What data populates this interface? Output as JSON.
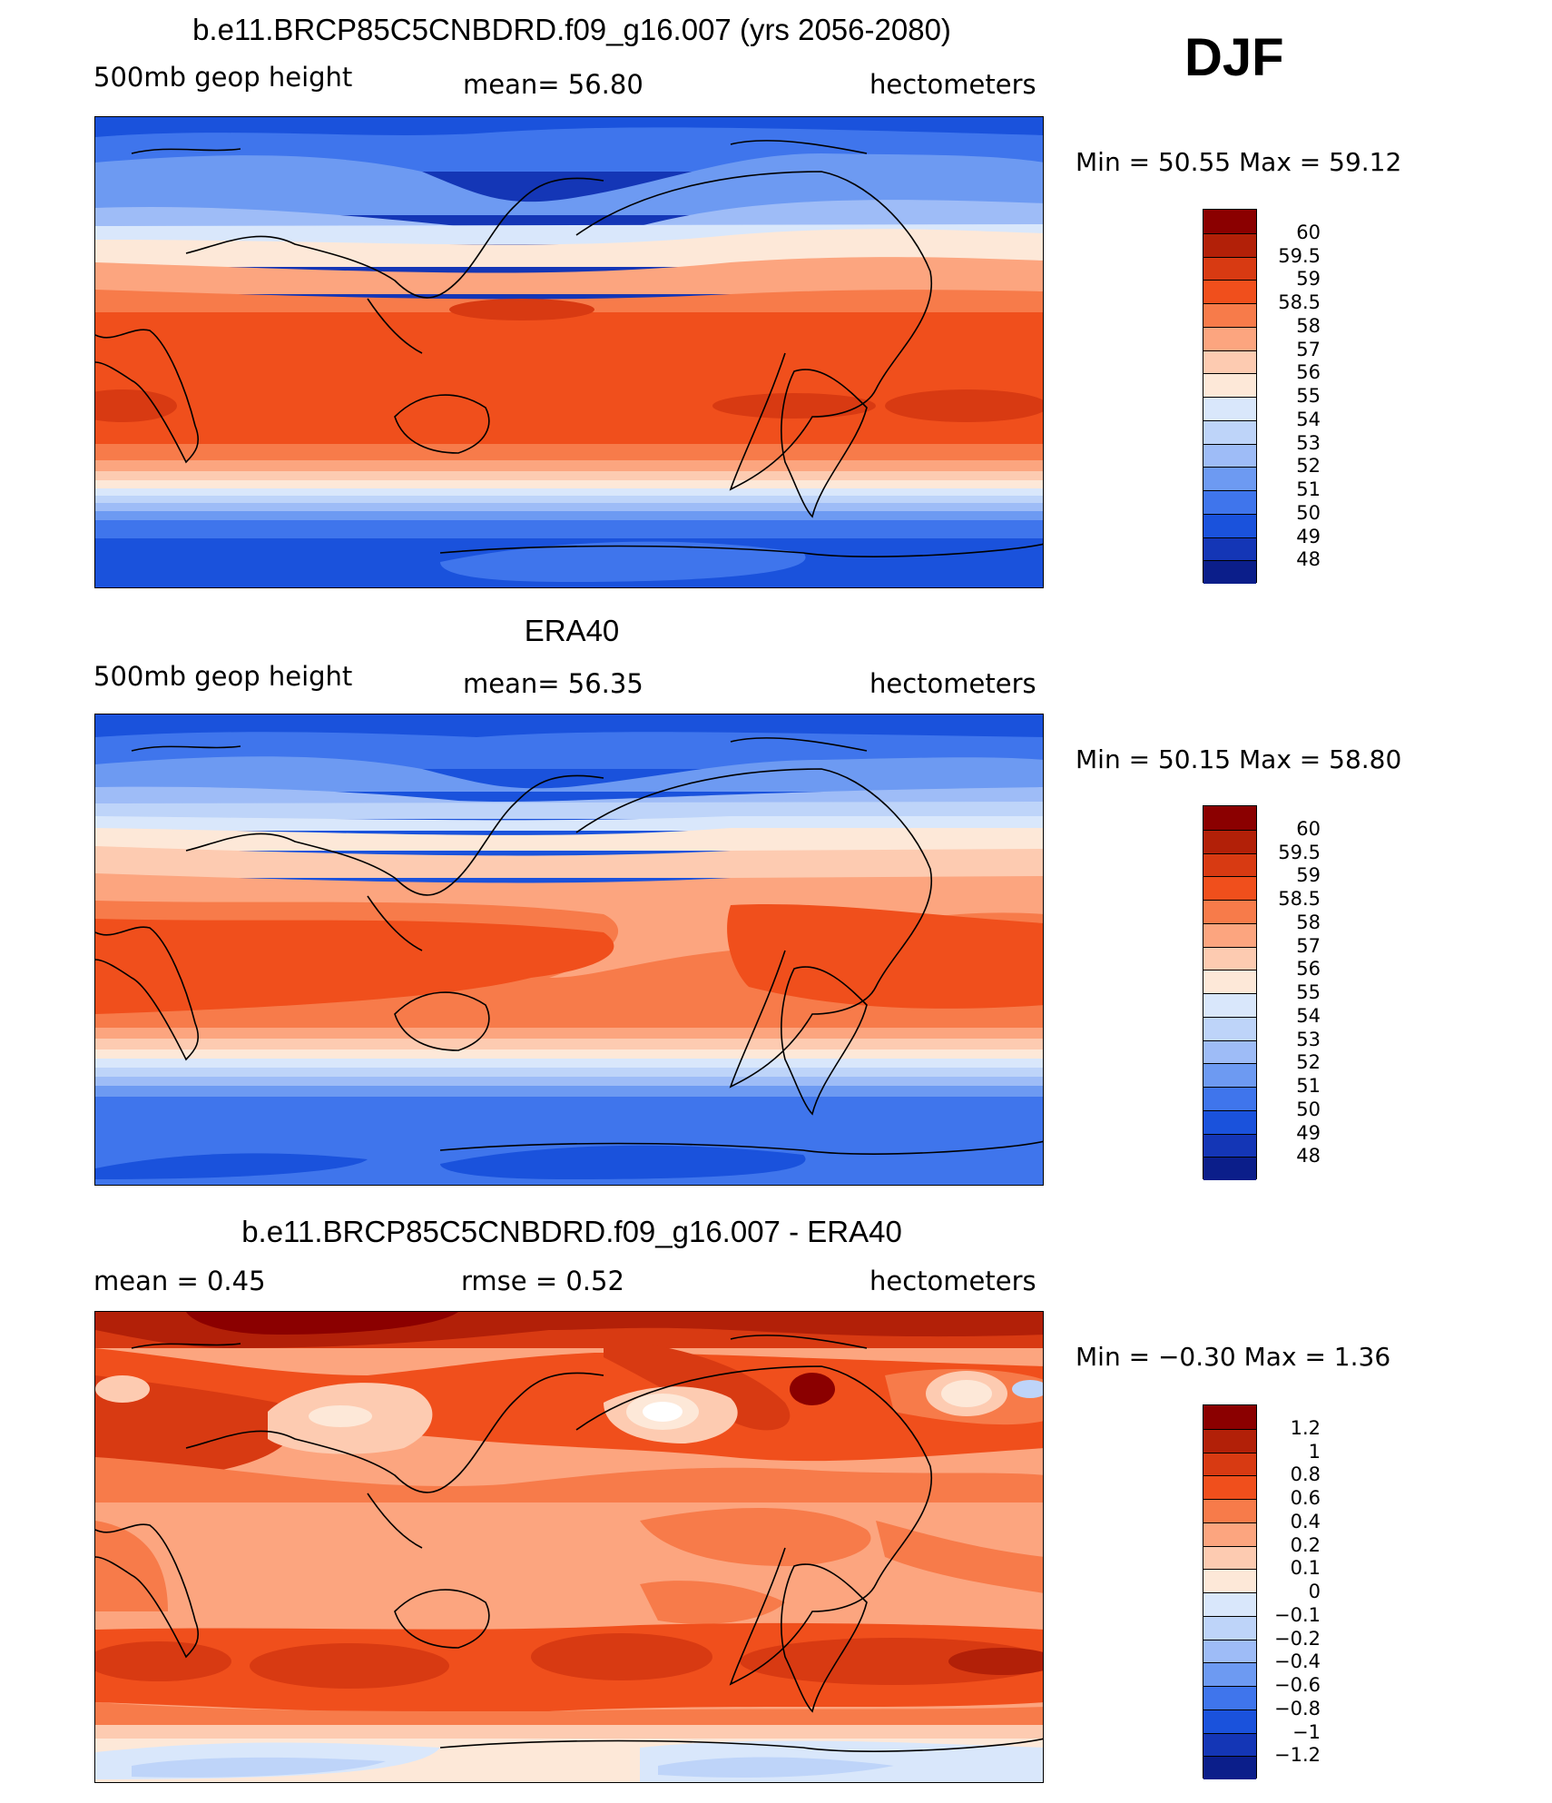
{
  "season": "DJF",
  "units": "hectometers",
  "panels": [
    {
      "title": "b.e11.BRCP85C5CNBDRD.f09_g16.007 (yrs 2056-2080)",
      "left_label": "500mb  geop  height",
      "center_label": "mean=   56.80",
      "right_label": "hectometers",
      "min_label": "Min  =    50.55  Max  =    59.12",
      "colorbar": {
        "labels": [
          "60",
          "59.5",
          "59",
          "58.5",
          "58",
          "57",
          "56",
          "55",
          "54",
          "53",
          "52",
          "51",
          "50",
          "49",
          "48"
        ],
        "colors": [
          "#8b0000",
          "#b22008",
          "#d83a12",
          "#f04f1c",
          "#f77b4a",
          "#fca57f",
          "#fdcbb1",
          "#fde8d8",
          "#d9e7fb",
          "#bed4f9",
          "#9ebcf7",
          "#6d9af2",
          "#3f75ec",
          "#1a52dc",
          "#1436b6",
          "#0b1e8a"
        ]
      }
    },
    {
      "title": "ERA40",
      "left_label": "500mb  geop  height",
      "center_label": "mean=   56.35",
      "right_label": "hectometers",
      "min_label": "Min  =    50.15  Max  =    58.80",
      "colorbar": {
        "labels": [
          "60",
          "59.5",
          "59",
          "58.5",
          "58",
          "57",
          "56",
          "55",
          "54",
          "53",
          "52",
          "51",
          "50",
          "49",
          "48"
        ],
        "colors": [
          "#8b0000",
          "#b22008",
          "#d83a12",
          "#f04f1c",
          "#f77b4a",
          "#fca57f",
          "#fdcbb1",
          "#fde8d8",
          "#d9e7fb",
          "#bed4f9",
          "#9ebcf7",
          "#6d9af2",
          "#3f75ec",
          "#1a52dc",
          "#1436b6",
          "#0b1e8a"
        ]
      }
    },
    {
      "title": "b.e11.BRCP85C5CNBDRD.f09_g16.007 - ERA40",
      "left_label": "mean  =      0.45",
      "center_label": "rmse  =      0.52",
      "right_label": "hectometers",
      "min_label": "Min  =    −0.30  Max  =      1.36",
      "colorbar": {
        "labels": [
          "1.2",
          "1",
          "0.8",
          "0.6",
          "0.4",
          "0.2",
          "0.1",
          "0",
          "−0.1",
          "−0.2",
          "−0.4",
          "−0.6",
          "−0.8",
          "−1",
          "−1.2"
        ],
        "colors": [
          "#8b0000",
          "#b22008",
          "#d83a12",
          "#f04f1c",
          "#f77b4a",
          "#fca57f",
          "#fdcbb1",
          "#fde8d8",
          "#d9e7fb",
          "#bed4f9",
          "#9ebcf7",
          "#6d9af2",
          "#3f75ec",
          "#1a52dc",
          "#1436b6",
          "#0b1e8a"
        ]
      }
    }
  ],
  "chart_data": [
    {
      "type": "heatmap",
      "title": "b.e11.BRCP85C5CNBDRD.f09_g16.007 (yrs 2056-2080)",
      "variable": "500mb geop height",
      "units": "hectometers",
      "season": "DJF",
      "mean": 56.8,
      "min": 50.55,
      "max": 59.12,
      "contour_levels": [
        48,
        49,
        50,
        51,
        52,
        53,
        54,
        55,
        56,
        57,
        58,
        58.5,
        59,
        59.5,
        60
      ],
      "projection": "cylindrical equidistant, centered 180"
    },
    {
      "type": "heatmap",
      "title": "ERA40",
      "variable": "500mb geop height",
      "units": "hectometers",
      "season": "DJF",
      "mean": 56.35,
      "min": 50.15,
      "max": 58.8,
      "contour_levels": [
        48,
        49,
        50,
        51,
        52,
        53,
        54,
        55,
        56,
        57,
        58,
        58.5,
        59,
        59.5,
        60
      ],
      "projection": "cylindrical equidistant, centered 180"
    },
    {
      "type": "heatmap",
      "title": "b.e11.BRCP85C5CNBDRD.f09_g16.007 - ERA40",
      "variable": "500mb geop height difference",
      "units": "hectometers",
      "season": "DJF",
      "mean": 0.45,
      "rmse": 0.52,
      "min": -0.3,
      "max": 1.36,
      "contour_levels": [
        -1.2,
        -1,
        -0.8,
        -0.6,
        -0.4,
        -0.2,
        -0.1,
        0,
        0.1,
        0.2,
        0.4,
        0.6,
        0.8,
        1,
        1.2
      ],
      "projection": "cylindrical equidistant, centered 180"
    }
  ]
}
